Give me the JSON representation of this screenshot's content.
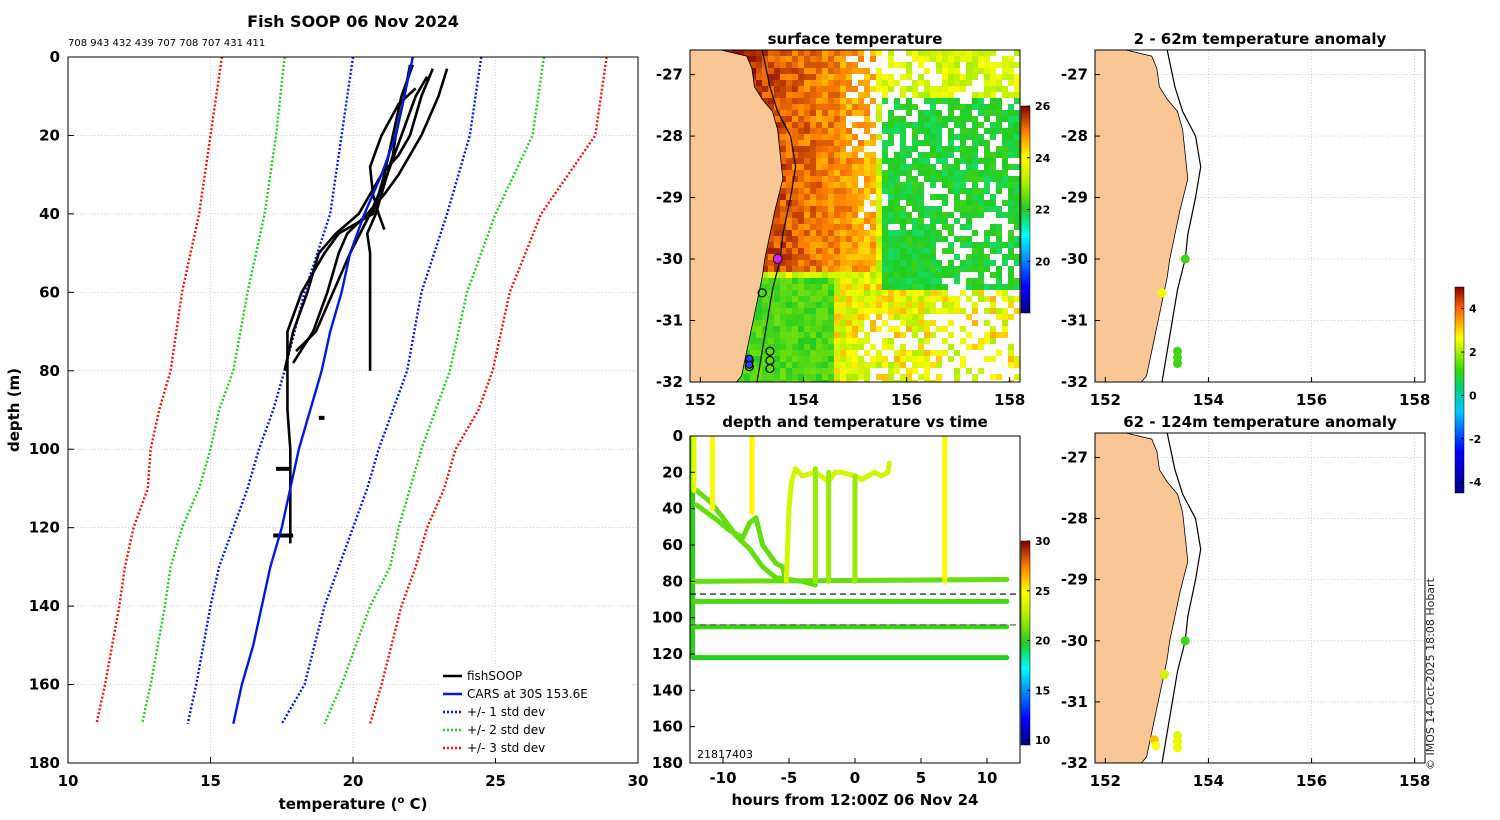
{
  "figure": {
    "credit": "© IMOS 14-Oct-2025 18:08 Hobart"
  },
  "colors": {
    "land": "#F9C796",
    "fishsoop": "#000000",
    "cars": "#0019DD",
    "std1": "#0019DD",
    "std2": "#22CC22",
    "std3": "#EE1111",
    "grid": "#BBBBBB"
  },
  "chart_data": [
    {
      "id": "profile",
      "type": "line",
      "title": "Fish SOOP 06 Nov 2024",
      "subtitle": "708 943 432 439 707 708 707 431 411",
      "xlabel": "temperature (",
      "xlabel_sup": "o",
      "xlabel_end": " C)",
      "ylabel": "depth (m)",
      "xlim": [
        10,
        30
      ],
      "ylim": [
        180,
        0
      ],
      "xticks": [
        10,
        15,
        20,
        25,
        30
      ],
      "yticks": [
        0,
        20,
        40,
        60,
        80,
        100,
        120,
        140,
        160,
        180
      ],
      "legend": [
        {
          "label": "fishSOOP",
          "style": "solid",
          "color": "#000000"
        },
        {
          "label": "CARS at 30S 153.6E",
          "style": "solid",
          "color": "#0019DD"
        },
        {
          "label": "+/- 1 std dev",
          "style": "dotted",
          "color": "#0019DD"
        },
        {
          "label": "+/- 2 std dev",
          "style": "dotted",
          "color": "#22CC22"
        },
        {
          "label": "+/- 3 std dev",
          "style": "dotted",
          "color": "#EE1111"
        }
      ],
      "cars_mean": {
        "depth": [
          0,
          10,
          20,
          30,
          40,
          50,
          60,
          70,
          80,
          90,
          100,
          110,
          120,
          130,
          140,
          150,
          160,
          170
        ],
        "temp": [
          22.1,
          21.8,
          21.5,
          21.0,
          20.4,
          19.9,
          19.6,
          19.2,
          18.9,
          18.5,
          18.1,
          17.8,
          17.5,
          17.1,
          16.8,
          16.5,
          16.1,
          15.8
        ]
      },
      "std_lines": [
        {
          "name": "-3 std",
          "color": "#EE1111",
          "depth": [
            0,
            20,
            40,
            60,
            80,
            90,
            100,
            110,
            120,
            130,
            140,
            160,
            170
          ],
          "temp": [
            15.4,
            15.0,
            14.6,
            14.0,
            13.6,
            13.2,
            12.9,
            12.8,
            12.3,
            12.0,
            11.8,
            11.3,
            11.0
          ]
        },
        {
          "name": "-2 std",
          "color": "#22CC22",
          "depth": [
            0,
            20,
            40,
            60,
            80,
            90,
            100,
            110,
            120,
            130,
            140,
            160,
            170
          ],
          "temp": [
            17.6,
            17.3,
            16.9,
            16.3,
            15.8,
            15.3,
            15.0,
            14.6,
            14.0,
            13.6,
            13.4,
            12.9,
            12.6
          ]
        },
        {
          "name": "-1 std",
          "color": "#0019DD",
          "depth": [
            0,
            20,
            40,
            60,
            80,
            90,
            100,
            110,
            120,
            130,
            140,
            160,
            170
          ],
          "temp": [
            20.0,
            19.6,
            19.2,
            18.3,
            17.6,
            17.2,
            16.7,
            16.3,
            15.8,
            15.3,
            15.0,
            14.5,
            14.2
          ]
        },
        {
          "name": "+1 std",
          "color": "#0019DD",
          "depth": [
            0,
            20,
            40,
            60,
            80,
            90,
            100,
            110,
            120,
            130,
            140,
            160,
            170
          ],
          "temp": [
            24.5,
            24.1,
            23.3,
            22.4,
            21.9,
            21.4,
            20.9,
            20.5,
            20.0,
            19.5,
            19.0,
            18.3,
            17.5
          ]
        },
        {
          "name": "+2 std",
          "color": "#22CC22",
          "depth": [
            0,
            20,
            40,
            60,
            80,
            90,
            100,
            110,
            120,
            130,
            140,
            160,
            170
          ],
          "temp": [
            26.7,
            26.3,
            25.0,
            24.0,
            23.4,
            22.9,
            22.4,
            22.0,
            21.6,
            21.3,
            20.6,
            19.6,
            19.0
          ]
        },
        {
          "name": "+3 std",
          "color": "#EE1111",
          "depth": [
            0,
            20,
            40,
            60,
            80,
            90,
            100,
            110,
            120,
            130,
            140,
            160,
            170
          ],
          "temp": [
            28.9,
            28.5,
            26.6,
            25.5,
            24.9,
            24.4,
            23.6,
            23.2,
            22.6,
            22.2,
            21.7,
            21.0,
            20.6
          ]
        }
      ],
      "fishsoop_profiles": [
        {
          "depth": [
            2,
            10,
            20,
            25,
            30,
            40,
            45,
            50,
            60,
            70,
            80
          ],
          "temp": [
            22.0,
            21.8,
            21.5,
            21.4,
            21.2,
            20.8,
            20.5,
            20.6,
            20.6,
            20.6,
            20.6
          ]
        },
        {
          "depth": [
            2,
            10,
            20,
            30,
            40,
            45,
            50,
            60,
            70,
            80,
            90,
            100,
            110,
            120,
            124
          ],
          "temp": [
            22.1,
            21.7,
            21.4,
            21.1,
            20.7,
            19.5,
            19.0,
            18.2,
            17.7,
            17.7,
            17.7,
            17.8,
            17.8,
            17.8,
            17.8
          ]
        },
        {
          "depth": [
            3,
            10,
            20,
            25,
            30,
            40,
            45,
            50,
            60,
            70,
            80
          ],
          "temp": [
            22.8,
            22.4,
            22.0,
            21.6,
            21.0,
            20.2,
            19.4,
            18.8,
            18.4,
            17.9,
            17.6
          ]
        },
        {
          "depth": [
            3,
            10,
            20,
            30,
            35,
            40,
            45,
            50,
            60,
            70,
            78
          ],
          "temp": [
            23.3,
            23.0,
            22.4,
            21.6,
            21.1,
            20.5,
            19.8,
            19.5,
            19.1,
            18.6,
            17.9
          ]
        },
        {
          "depth": [
            5,
            10,
            20,
            30,
            40,
            50,
            60,
            70,
            75
          ],
          "temp": [
            22.6,
            22.2,
            21.7,
            21.2,
            20.6,
            19.9,
            19.3,
            18.7,
            18.0
          ]
        },
        {
          "depth": [
            8,
            12,
            20,
            28,
            35,
            40,
            44
          ],
          "temp": [
            22.2,
            21.6,
            21.0,
            20.6,
            20.7,
            20.9,
            21.1
          ]
        }
      ],
      "noise_blobs": [
        {
          "depth": 92,
          "t0": 18.8,
          "t1": 19.0
        },
        {
          "depth": 105,
          "t0": 17.3,
          "t1": 17.8
        },
        {
          "depth": 122,
          "t0": 17.2,
          "t1": 17.9
        }
      ]
    },
    {
      "id": "sst_map",
      "type": "heatmap",
      "title": "surface temperature",
      "xlim": [
        151.8,
        158.2
      ],
      "ylim": [
        -32,
        -26.6
      ],
      "xticks": [
        152,
        154,
        156,
        158
      ],
      "yticks": [
        -27,
        -28,
        -29,
        -30,
        -31,
        -32
      ],
      "colorbar": {
        "min": 18,
        "max": 26,
        "ticks": [
          20,
          22,
          24,
          26
        ]
      },
      "highlight": {
        "lon": 153.5,
        "lat": -30.0,
        "color": "#CC22FF"
      },
      "open_markers": [
        {
          "lon": 153.2,
          "lat": -30.55
        },
        {
          "lon": 153.35,
          "lat": -31.5
        },
        {
          "lon": 153.35,
          "lat": -31.65
        },
        {
          "lon": 153.35,
          "lat": -31.78
        },
        {
          "lon": 152.95,
          "lat": -31.65
        },
        {
          "lon": 152.95,
          "lat": -31.75
        }
      ],
      "blue_markers": [
        {
          "lon": 152.95,
          "lat": -31.62
        },
        {
          "lon": 152.95,
          "lat": -31.72
        }
      ]
    },
    {
      "id": "anom_shallow",
      "type": "scatter",
      "title": "2 - 62m temperature anomaly",
      "xlim": [
        151.8,
        158.2
      ],
      "ylim": [
        -32,
        -26.6
      ],
      "xticks": [
        152,
        154,
        156,
        158
      ],
      "yticks": [
        -27,
        -28,
        -29,
        -30,
        -31,
        -32
      ],
      "points": [
        {
          "lon": 153.55,
          "lat": -30.0,
          "anomaly": 0.5
        },
        {
          "lon": 153.1,
          "lat": -30.55,
          "anomaly": 2.4
        },
        {
          "lon": 153.4,
          "lat": -31.5,
          "anomaly": 0.5
        },
        {
          "lon": 153.4,
          "lat": -31.6,
          "anomaly": 0.6
        },
        {
          "lon": 153.4,
          "lat": -31.7,
          "anomaly": 0.5
        }
      ]
    },
    {
      "id": "anom_deep",
      "type": "scatter",
      "title": "62 - 124m temperature anomaly",
      "xlim": [
        151.8,
        158.2
      ],
      "ylim": [
        -32,
        -26.6
      ],
      "xticks": [
        152,
        154,
        156,
        158
      ],
      "yticks": [
        -27,
        -28,
        -29,
        -30,
        -31,
        -32
      ],
      "colorbar": {
        "min": -4.5,
        "max": 5,
        "ticks": [
          -4,
          -2,
          0,
          2,
          4
        ]
      },
      "points": [
        {
          "lon": 153.55,
          "lat": -30.0,
          "anomaly": 0.5
        },
        {
          "lon": 153.15,
          "lat": -30.55,
          "anomaly": 2.0
        },
        {
          "lon": 153.4,
          "lat": -31.55,
          "anomaly": 2.2
        },
        {
          "lon": 153.4,
          "lat": -31.65,
          "anomaly": 2.3
        },
        {
          "lon": 153.4,
          "lat": -31.75,
          "anomaly": 2.4
        },
        {
          "lon": 152.95,
          "lat": -31.62,
          "anomaly": 3.2
        },
        {
          "lon": 152.98,
          "lat": -31.72,
          "anomaly": 2.6
        }
      ]
    },
    {
      "id": "time_depth",
      "type": "scatter",
      "title": "depth and temperature vs time",
      "xlabel": "hours from 12:00Z 06 Nov 24",
      "xlim": [
        -12.5,
        12.5
      ],
      "ylim": [
        180,
        0
      ],
      "xticks": [
        -10,
        -5,
        0,
        5,
        10
      ],
      "yticks": [
        0,
        20,
        40,
        60,
        80,
        100,
        120,
        140,
        160,
        180
      ],
      "overlap_label": "21817403",
      "colorbar": {
        "min": 9.5,
        "max": 30,
        "ticks": [
          10,
          15,
          20,
          25,
          30
        ]
      },
      "dashed_depths": [
        87,
        104
      ],
      "segments": [
        {
          "t": [
            -12.3,
            -12.3
          ],
          "d": [
            0,
            122
          ],
          "temp": 20
        },
        {
          "t": [
            -12.2,
            11.5
          ],
          "d": [
            80,
            79
          ],
          "temp": 21
        },
        {
          "t": [
            -12.2,
            11.5
          ],
          "d": [
            91,
            91
          ],
          "temp": 20.5
        },
        {
          "t": [
            -12.2,
            11.5
          ],
          "d": [
            105,
            105
          ],
          "temp": 20.3
        },
        {
          "t": [
            -12.2,
            11.5
          ],
          "d": [
            122,
            122
          ],
          "temp": 19.8
        },
        {
          "t": [
            -12.0,
            -11.0,
            -10.0,
            -9.0,
            -8.0,
            -7.0,
            -6.0,
            -4.0,
            -3.0
          ],
          "d": [
            30,
            36,
            45,
            55,
            62,
            72,
            78,
            80,
            82
          ],
          "temp": 21
        },
        {
          "t": [
            -12.0,
            -10.5,
            -9.5,
            -8.5,
            -8.0,
            -7.5,
            -7.0,
            -6.0,
            -5.5,
            -5.2
          ],
          "d": [
            38,
            46,
            52,
            56,
            48,
            45,
            60,
            70,
            72,
            80
          ],
          "temp": 21
        },
        {
          "t": [
            -5.2,
            -5.0,
            -4.8,
            -4.5,
            -4.0,
            -3.0,
            -2.0,
            -1.5,
            -1.0,
            0.0,
            0.5,
            1.5,
            2.0,
            2.5,
            2.6
          ],
          "d": [
            80,
            40,
            25,
            18,
            22,
            20,
            25,
            20,
            20,
            22,
            24,
            20,
            22,
            20,
            15
          ],
          "temp": 23.5
        },
        {
          "t": [
            -10.8,
            -10.8
          ],
          "d": [
            0,
            40
          ],
          "temp": 25
        },
        {
          "t": [
            -7.8,
            -7.8
          ],
          "d": [
            0,
            42
          ],
          "temp": 25
        },
        {
          "t": [
            -12.2,
            -12.2
          ],
          "d": [
            0,
            30
          ],
          "temp": 24
        },
        {
          "t": [
            -2.0,
            -2.0
          ],
          "d": [
            20,
            80
          ],
          "temp": 22
        },
        {
          "t": [
            0.0,
            0.0
          ],
          "d": [
            22,
            80
          ],
          "temp": 22
        },
        {
          "t": [
            6.8,
            6.8
          ],
          "d": [
            0,
            80
          ],
          "temp": 25
        },
        {
          "t": [
            -3.0,
            -3.0
          ],
          "d": [
            18,
            80
          ],
          "temp": 22
        }
      ]
    }
  ]
}
